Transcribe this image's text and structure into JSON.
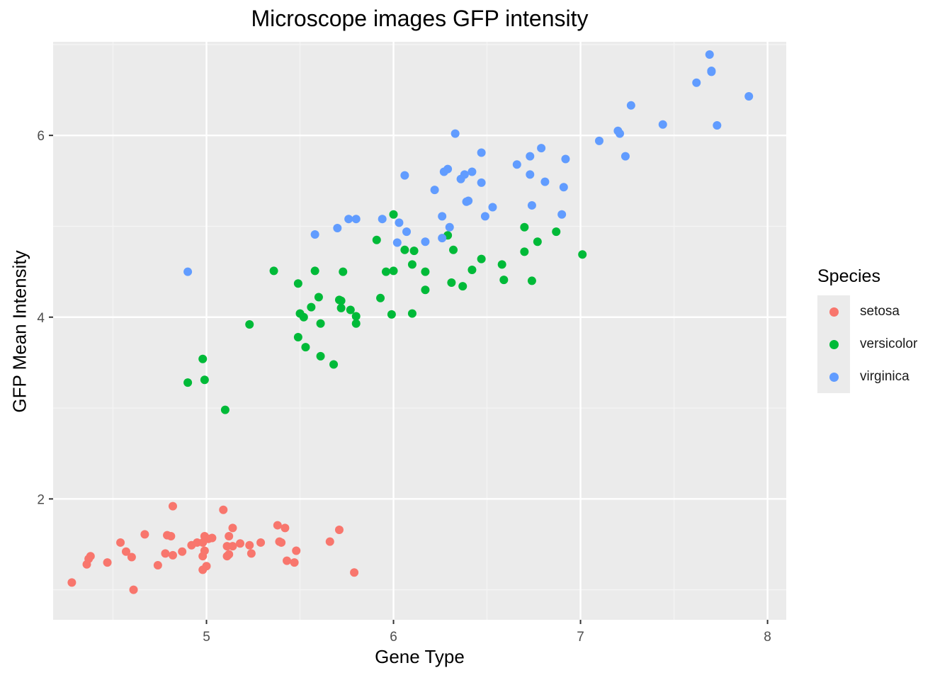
{
  "chart_data": {
    "type": "scatter",
    "title": "Microscope images GFP intensity",
    "xlabel": "Gene Type",
    "ylabel": "GFP Mean Intensity",
    "xlim": [
      4.18,
      8.1
    ],
    "ylim": [
      0.67,
      7.03
    ],
    "x_ticks": [
      5,
      6,
      7,
      8
    ],
    "y_ticks": [
      2,
      4,
      6
    ],
    "grid": true,
    "legend": {
      "title": "Species",
      "position": "right"
    },
    "series": [
      {
        "name": "setosa",
        "color": "#F8766D",
        "points": [
          [
            4.28,
            1.08
          ],
          [
            4.36,
            1.28
          ],
          [
            4.37,
            1.34
          ],
          [
            4.38,
            1.37
          ],
          [
            4.47,
            1.3
          ],
          [
            4.54,
            1.52
          ],
          [
            4.57,
            1.42
          ],
          [
            4.6,
            1.36
          ],
          [
            4.61,
            1.0
          ],
          [
            4.67,
            1.61
          ],
          [
            4.74,
            1.27
          ],
          [
            4.78,
            1.4
          ],
          [
            4.79,
            1.6
          ],
          [
            4.81,
            1.59
          ],
          [
            4.82,
            1.38
          ],
          [
            4.82,
            1.92
          ],
          [
            4.87,
            1.42
          ],
          [
            4.92,
            1.49
          ],
          [
            4.95,
            1.52
          ],
          [
            4.98,
            1.22
          ],
          [
            4.98,
            1.37
          ],
          [
            4.98,
            1.52
          ],
          [
            4.99,
            1.43
          ],
          [
            4.99,
            1.59
          ],
          [
            5.0,
            1.26
          ],
          [
            5.01,
            1.56
          ],
          [
            5.03,
            1.57
          ],
          [
            5.09,
            1.88
          ],
          [
            5.11,
            1.48
          ],
          [
            5.11,
            1.37
          ],
          [
            5.12,
            1.39
          ],
          [
            5.12,
            1.59
          ],
          [
            5.14,
            1.48
          ],
          [
            5.14,
            1.68
          ],
          [
            5.18,
            1.51
          ],
          [
            5.23,
            1.49
          ],
          [
            5.24,
            1.4
          ],
          [
            5.29,
            1.52
          ],
          [
            5.38,
            1.71
          ],
          [
            5.39,
            1.53
          ],
          [
            5.4,
            1.52
          ],
          [
            5.42,
            1.68
          ],
          [
            5.43,
            1.32
          ],
          [
            5.47,
            1.3
          ],
          [
            5.48,
            1.43
          ],
          [
            5.66,
            1.53
          ],
          [
            5.71,
            1.66
          ],
          [
            5.79,
            1.19
          ]
        ]
      },
      {
        "name": "versicolor",
        "color": "#00BA38",
        "points": [
          [
            4.9,
            3.28
          ],
          [
            4.98,
            3.54
          ],
          [
            4.99,
            3.31
          ],
          [
            5.1,
            2.98
          ],
          [
            5.23,
            3.92
          ],
          [
            5.36,
            4.51
          ],
          [
            5.49,
            3.78
          ],
          [
            5.49,
            4.37
          ],
          [
            5.5,
            4.04
          ],
          [
            5.52,
            4.0
          ],
          [
            5.53,
            3.67
          ],
          [
            5.56,
            4.11
          ],
          [
            5.58,
            4.51
          ],
          [
            5.6,
            4.22
          ],
          [
            5.61,
            3.93
          ],
          [
            5.61,
            3.57
          ],
          [
            5.68,
            3.48
          ],
          [
            5.71,
            4.19
          ],
          [
            5.72,
            4.18
          ],
          [
            5.72,
            4.1
          ],
          [
            5.73,
            4.5
          ],
          [
            5.77,
            4.08
          ],
          [
            5.8,
            4.01
          ],
          [
            5.8,
            3.93
          ],
          [
            5.91,
            4.85
          ],
          [
            5.93,
            4.21
          ],
          [
            5.96,
            4.5
          ],
          [
            5.99,
            4.03
          ],
          [
            6.0,
            4.51
          ],
          [
            6.0,
            5.13
          ],
          [
            6.06,
            4.74
          ],
          [
            6.1,
            4.58
          ],
          [
            6.1,
            4.04
          ],
          [
            6.11,
            4.73
          ],
          [
            6.17,
            4.3
          ],
          [
            6.17,
            4.5
          ],
          [
            6.29,
            4.9
          ],
          [
            6.31,
            4.38
          ],
          [
            6.32,
            4.74
          ],
          [
            6.37,
            4.34
          ],
          [
            6.42,
            4.52
          ],
          [
            6.47,
            4.64
          ],
          [
            6.58,
            4.58
          ],
          [
            6.59,
            4.41
          ],
          [
            6.7,
            4.99
          ],
          [
            6.7,
            4.72
          ],
          [
            6.74,
            4.4
          ],
          [
            6.77,
            4.83
          ],
          [
            6.87,
            4.94
          ],
          [
            7.01,
            4.69
          ]
        ]
      },
      {
        "name": "virginica",
        "color": "#619CFF",
        "points": [
          [
            4.9,
            4.5
          ],
          [
            5.58,
            4.91
          ],
          [
            5.7,
            4.98
          ],
          [
            5.76,
            5.08
          ],
          [
            5.8,
            5.08
          ],
          [
            5.94,
            5.08
          ],
          [
            6.02,
            4.82
          ],
          [
            6.03,
            5.04
          ],
          [
            6.06,
            5.56
          ],
          [
            6.07,
            4.94
          ],
          [
            6.17,
            4.83
          ],
          [
            6.22,
            5.4
          ],
          [
            6.26,
            4.87
          ],
          [
            6.26,
            5.11
          ],
          [
            6.27,
            5.6
          ],
          [
            6.29,
            5.63
          ],
          [
            6.3,
            4.99
          ],
          [
            6.33,
            6.02
          ],
          [
            6.36,
            5.52
          ],
          [
            6.38,
            5.57
          ],
          [
            6.39,
            5.27
          ],
          [
            6.4,
            5.28
          ],
          [
            6.42,
            5.6
          ],
          [
            6.47,
            5.81
          ],
          [
            6.47,
            5.48
          ],
          [
            6.49,
            5.11
          ],
          [
            6.53,
            5.21
          ],
          [
            6.66,
            5.68
          ],
          [
            6.73,
            5.77
          ],
          [
            6.73,
            5.57
          ],
          [
            6.74,
            5.23
          ],
          [
            6.79,
            5.86
          ],
          [
            6.81,
            5.49
          ],
          [
            6.9,
            5.13
          ],
          [
            6.91,
            5.43
          ],
          [
            6.92,
            5.74
          ],
          [
            7.1,
            5.94
          ],
          [
            7.2,
            6.05
          ],
          [
            7.21,
            6.02
          ],
          [
            7.24,
            5.77
          ],
          [
            7.27,
            6.33
          ],
          [
            7.44,
            6.12
          ],
          [
            7.62,
            6.58
          ],
          [
            7.69,
            6.89
          ],
          [
            7.7,
            6.71
          ],
          [
            7.7,
            6.7
          ],
          [
            7.73,
            6.11
          ],
          [
            7.9,
            6.43
          ]
        ]
      }
    ]
  }
}
